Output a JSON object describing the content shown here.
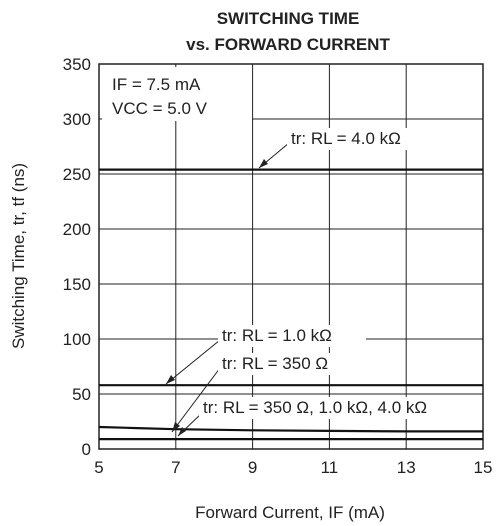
{
  "chart_data": {
    "type": "line",
    "title_line1": "SWITCHING TIME",
    "title_line2": "vs. FORWARD CURRENT",
    "xlabel": "Forward Current, IF (mA)",
    "ylabel": "Switching Time, tr, tf (ns)",
    "xlim": [
      5,
      15
    ],
    "ylim": [
      0,
      350
    ],
    "x_ticks": [
      "5",
      "7",
      "9",
      "11",
      "13",
      "15"
    ],
    "y_ticks": [
      "0",
      "50",
      "100",
      "150",
      "200",
      "250",
      "300",
      "350"
    ],
    "grid": true,
    "conditions": [
      "IF = 7.5 mA",
      "VCC = 5.0 V"
    ],
    "series": [
      {
        "label": "tr: RL = 4.0 kΩ",
        "x": [
          5,
          15
        ],
        "y": [
          254,
          254
        ]
      },
      {
        "label": "tr: RL = 1.0 kΩ",
        "x": [
          5,
          15
        ],
        "y": [
          58,
          58
        ]
      },
      {
        "label": "tr: RL = 350 Ω",
        "x": [
          5,
          15
        ],
        "y": [
          9,
          9
        ]
      },
      {
        "label": "tr: RL = 350 Ω, 1.0 kΩ, 4.0 kΩ",
        "x": [
          5,
          6,
          7,
          9,
          11,
          13,
          15
        ],
        "y": [
          20,
          19,
          18,
          17,
          16.5,
          16,
          16
        ]
      }
    ]
  }
}
